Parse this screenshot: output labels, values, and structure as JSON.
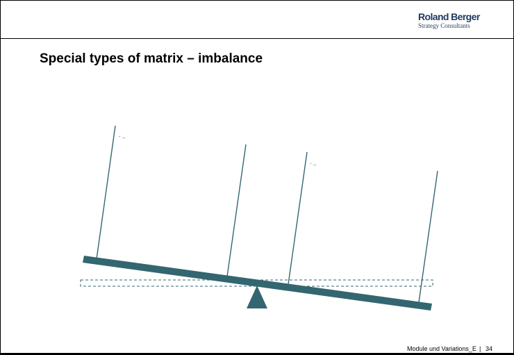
{
  "logo": {
    "top": "Roland Berger",
    "bottom": "Strategy Consultants"
  },
  "title": "Special types of matrix – imbalance",
  "diagram": {
    "beam_color": "#336670",
    "fulcrum_color": "#336670",
    "pole_color": "#336670",
    "bullets": [
      "· ..",
      "· .."
    ]
  },
  "footer": {
    "text": "Module und Variations_E",
    "separator": "|",
    "page": "34"
  }
}
